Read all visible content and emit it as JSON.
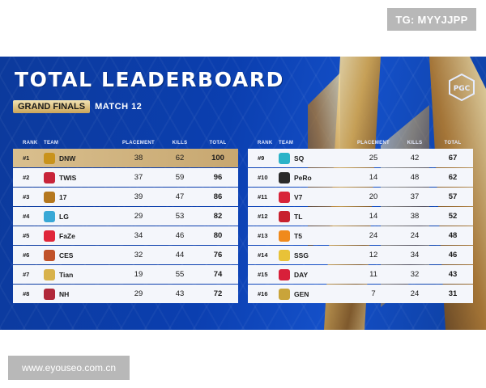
{
  "watermark_top": "TG: MYYJJPP",
  "watermark_bottom": "www.eyouseo.com.cn",
  "title": "TOTAL LEADERBOARD",
  "stage_tag": "GRAND FINALS",
  "match_label": "MATCH 12",
  "columns": {
    "rank": "RANK",
    "team": "TEAM",
    "placement": "PLACEMENT",
    "kills": "KILLS",
    "total": "TOTAL"
  },
  "left_rows": [
    {
      "rank": "#1",
      "team": "DNW",
      "placement": "38",
      "kills": "62",
      "total": "100",
      "logo_color": "#c9931c"
    },
    {
      "rank": "#2",
      "team": "TWIS",
      "placement": "37",
      "kills": "59",
      "total": "96",
      "logo_color": "#c8243a"
    },
    {
      "rank": "#3",
      "team": "17",
      "placement": "39",
      "kills": "47",
      "total": "86",
      "logo_color": "#b5781f"
    },
    {
      "rank": "#4",
      "team": "LG",
      "placement": "29",
      "kills": "53",
      "total": "82",
      "logo_color": "#39a8d6"
    },
    {
      "rank": "#5",
      "team": "FaZe",
      "placement": "34",
      "kills": "46",
      "total": "80",
      "logo_color": "#e0263a"
    },
    {
      "rank": "#6",
      "team": "CES",
      "placement": "32",
      "kills": "44",
      "total": "76",
      "logo_color": "#c0522a"
    },
    {
      "rank": "#7",
      "team": "Tian",
      "placement": "19",
      "kills": "55",
      "total": "74",
      "logo_color": "#d8b24c"
    },
    {
      "rank": "#8",
      "team": "NH",
      "placement": "29",
      "kills": "43",
      "total": "72",
      "logo_color": "#b0283a"
    }
  ],
  "right_rows": [
    {
      "rank": "#9",
      "team": "SQ",
      "placement": "25",
      "kills": "42",
      "total": "67",
      "logo_color": "#2bb3c8"
    },
    {
      "rank": "#10",
      "team": "PeRo",
      "placement": "14",
      "kills": "48",
      "total": "62",
      "logo_color": "#2a2a2a"
    },
    {
      "rank": "#11",
      "team": "V7",
      "placement": "20",
      "kills": "37",
      "total": "57",
      "logo_color": "#d8243a"
    },
    {
      "rank": "#12",
      "team": "TL",
      "placement": "14",
      "kills": "38",
      "total": "52",
      "logo_color": "#c8202e"
    },
    {
      "rank": "#13",
      "team": "T5",
      "placement": "24",
      "kills": "24",
      "total": "48",
      "logo_color": "#f08a1c"
    },
    {
      "rank": "#14",
      "team": "SSG",
      "placement": "12",
      "kills": "34",
      "total": "46",
      "logo_color": "#e8c238"
    },
    {
      "rank": "#15",
      "team": "DAY",
      "placement": "11",
      "kills": "32",
      "total": "43",
      "logo_color": "#d8203a"
    },
    {
      "rank": "#16",
      "team": "GEN",
      "placement": "7",
      "kills": "24",
      "total": "31",
      "logo_color": "#c9a43a"
    }
  ]
}
